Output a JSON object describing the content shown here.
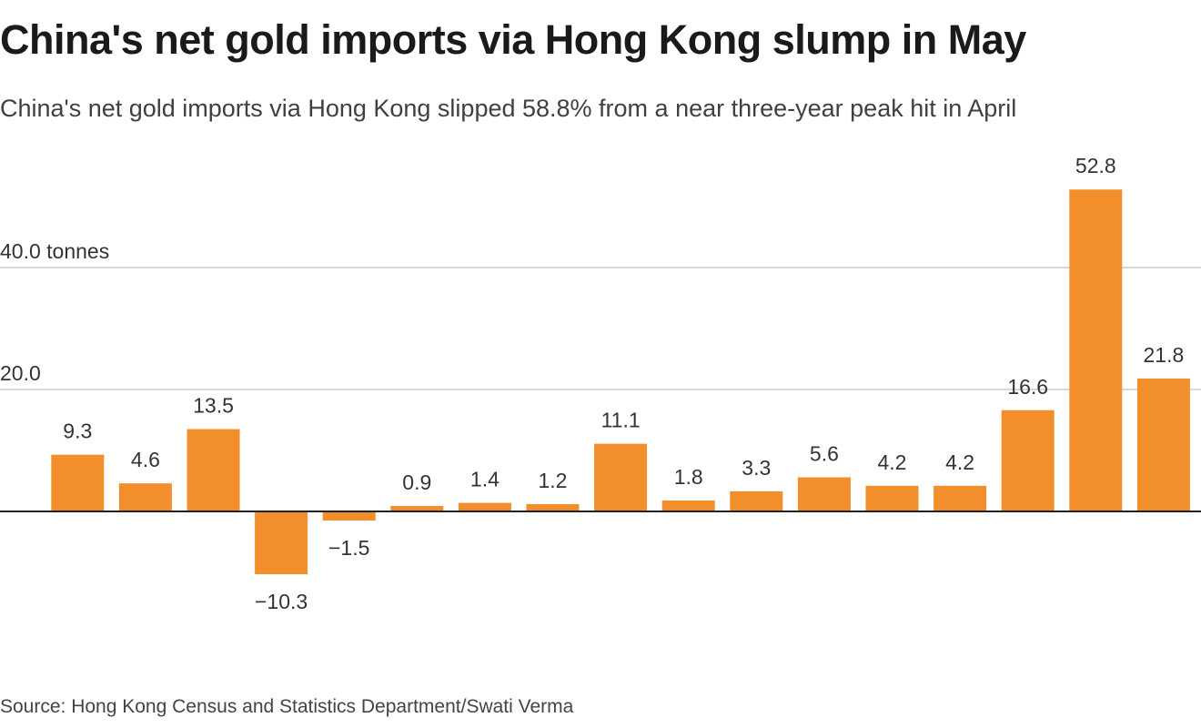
{
  "title": "China's net gold imports via Hong Kong slump in May",
  "subtitle": "China's net gold imports via Hong Kong slipped 58.8% from a near three-year peak hit in April",
  "source": "Source: Hong Kong Census and Statistics Department/Swati Verma",
  "colors": {
    "bar": "#f28e2b",
    "grid": "#cccccc",
    "zero_line": "#222222"
  },
  "chart_data": {
    "type": "bar",
    "title": "China's net gold imports via Hong Kong slump in May",
    "subtitle": "China's net gold imports via Hong Kong slipped 58.8% from a near three-year peak hit in April",
    "ylabel": "tonnes",
    "ylim": [
      -10.3,
      52.8
    ],
    "yticks": [
      {
        "value": 40,
        "label": "40.0 tonnes"
      },
      {
        "value": 20,
        "label": "20.0"
      }
    ],
    "grid": true,
    "categories": [],
    "values": [
      9.3,
      4.6,
      13.5,
      -10.3,
      -1.5,
      0.9,
      1.4,
      1.2,
      11.1,
      1.8,
      3.3,
      5.6,
      4.2,
      4.2,
      16.6,
      52.8,
      21.8
    ],
    "labels": [
      "9.3",
      "4.6",
      "13.5",
      "−10.3",
      "−1.5",
      "0.9",
      "1.4",
      "1.2",
      "11.1",
      "1.8",
      "3.3",
      "5.6",
      "4.2",
      "4.2",
      "16.6",
      "52.8",
      "21.8"
    ]
  }
}
